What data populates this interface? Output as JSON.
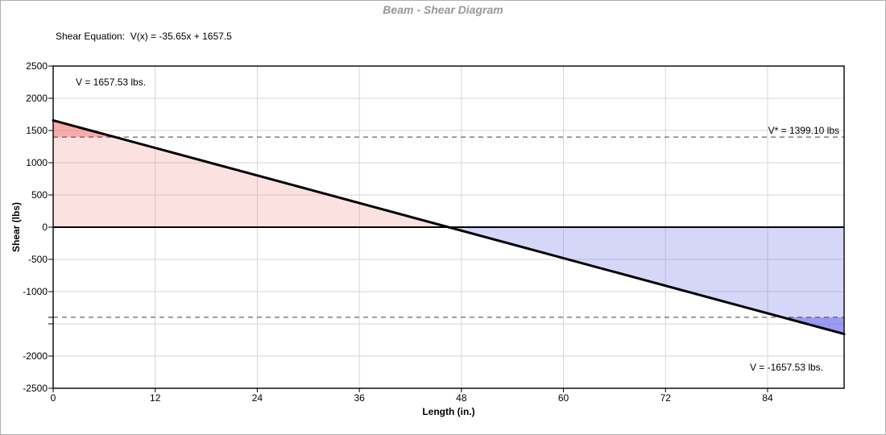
{
  "window": {
    "title": "Beam - Shear Diagram"
  },
  "equation_line": "Shear Equation:  V(x) = -35.65x + 1657.5",
  "chart_data": {
    "type": "line",
    "title": "Beam - Shear Diagram",
    "xlabel": "Length (in.)",
    "ylabel": "Shear (lbs)",
    "xlim": [
      0,
      93
    ],
    "ylim": [
      -2500,
      2500
    ],
    "grid": true,
    "legend": "none",
    "xticks": [
      0,
      12,
      24,
      36,
      48,
      60,
      72,
      84
    ],
    "yticks": [
      {
        "value": 2500,
        "label": "2500"
      },
      {
        "value": 2000,
        "label": "2000"
      },
      {
        "value": 1500,
        "label": "1500"
      },
      {
        "value": 1000,
        "label": "1000"
      },
      {
        "value": 500,
        "label": "500"
      },
      {
        "value": 0,
        "label": "0"
      },
      {
        "value": -500,
        "label": "-500"
      },
      {
        "value": -1000,
        "label": "-1000"
      },
      {
        "value": -1399.1,
        "label": ""
      },
      {
        "value": -1500,
        "label": ""
      },
      {
        "value": -2000,
        "label": "-2000"
      },
      {
        "value": -2500,
        "label": "-2500"
      }
    ],
    "series": [
      {
        "name": "shear-line",
        "x": [
          0,
          93
        ],
        "y": [
          1657.53,
          -1657.53
        ]
      }
    ],
    "equation": {
      "slope": -35.65,
      "intercept": 1657.5
    },
    "shear_start_lbs": 1657.53,
    "shear_end_lbs": -1657.53,
    "allowable_shear_lbs": 1399.1,
    "reference_lines": [
      {
        "value": 1399.1,
        "style": "dashed",
        "label": "V* = 1399.10 lbs"
      },
      {
        "value": -1399.1,
        "style": "dashed",
        "label": ""
      }
    ],
    "annotations": [
      {
        "id": "v-start",
        "text": "V = 1657.53 lbs."
      },
      {
        "id": "v-star",
        "text": "V* = 1399.10 lbs"
      },
      {
        "id": "v-end",
        "text": "V = -1657.53 lbs."
      }
    ],
    "colors": {
      "positive_fill_light": "rgba(242,120,120,0.22)",
      "positive_fill_dark": "rgba(242,120,120,0.50)",
      "negative_fill_light": "rgba(108,108,235,0.28)",
      "negative_fill_dark": "rgba(108,108,235,0.55)",
      "shear_line": "#000000",
      "zero_line": "#000000",
      "grid_line": "#d6d6d6",
      "dashed_line": "#404040",
      "plot_border": "#000000",
      "title_text": "#97979c"
    }
  }
}
